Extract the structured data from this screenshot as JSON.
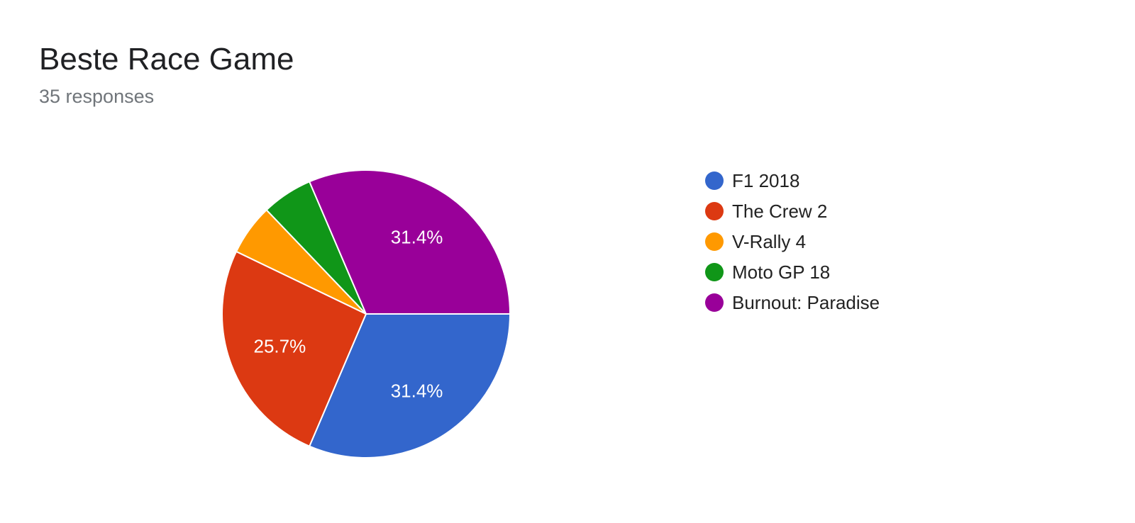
{
  "header": {
    "title": "Beste Race Game",
    "responses": "35 responses"
  },
  "chart_data": {
    "type": "pie",
    "title": "Beste Race Game",
    "total": 35,
    "legend_position": "right",
    "categories": [
      "F1 2018",
      "The Crew 2",
      "V-Rally 4",
      "Moto GP 18",
      "Burnout: Paradise"
    ],
    "values": [
      11,
      9,
      2,
      2,
      11
    ],
    "percent_labels": [
      "31.4%",
      "25.7%",
      "",
      "",
      "31.4%"
    ],
    "colors": [
      "#3366cc",
      "#dc3912",
      "#ff9900",
      "#109618",
      "#990099"
    ]
  }
}
